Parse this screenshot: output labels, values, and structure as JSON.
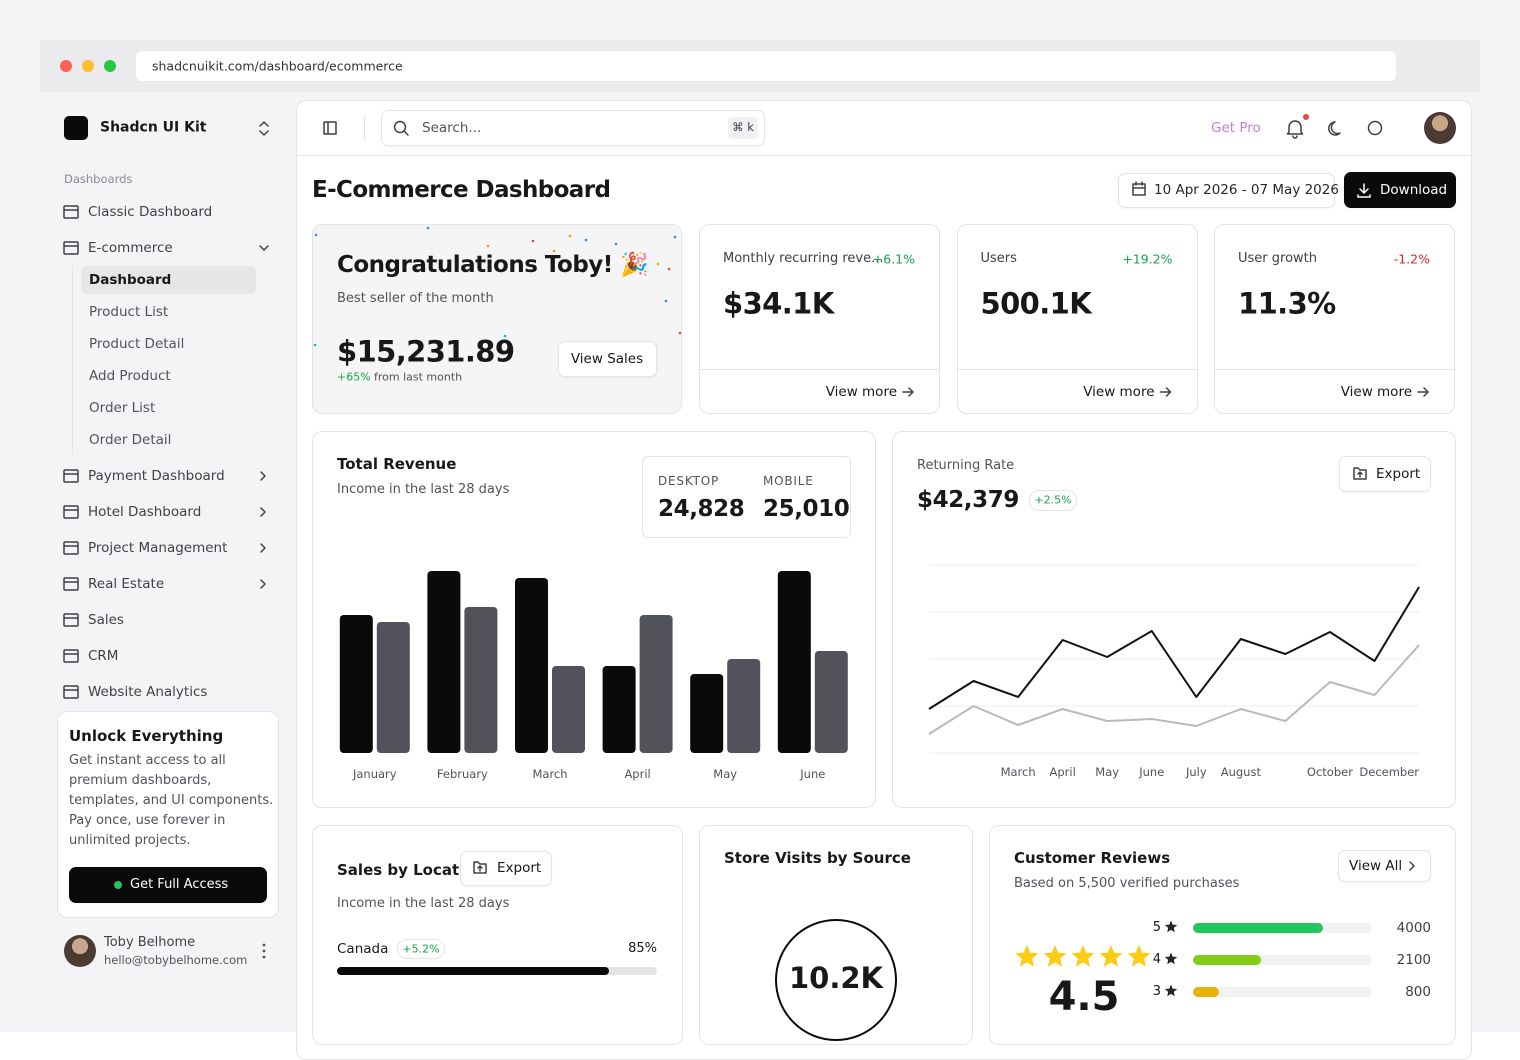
{
  "browser": {
    "url": "shadcnuikit.com/dashboard/ecommerce"
  },
  "sidebar": {
    "brand": "Shadcn UI Kit",
    "section": "Dashboards",
    "items": [
      {
        "label": "Classic Dashboard"
      },
      {
        "label": "E-commerce",
        "children": [
          "Dashboard",
          "Product List",
          "Product Detail",
          "Add Product",
          "Order List",
          "Order Detail"
        ],
        "active_child": 0
      },
      {
        "label": "Payment Dashboard",
        "submenu": true
      },
      {
        "label": "Hotel Dashboard",
        "submenu": true
      },
      {
        "label": "Project Management",
        "submenu": true
      },
      {
        "label": "Real Estate",
        "submenu": true
      },
      {
        "label": "Sales"
      },
      {
        "label": "CRM"
      },
      {
        "label": "Website Analytics"
      }
    ],
    "promo": {
      "title": "Unlock Everything",
      "text": "Get instant access to all premium dashboards, templates, and UI components. Pay once, use forever in unlimited projects.",
      "button": "Get Full Access"
    },
    "user": {
      "name": "Toby Belhome",
      "email": "hello@tobybelhome.com"
    }
  },
  "topbar": {
    "search": "Search...",
    "shortcut": "⌘ k",
    "get_pro": "Get Pro"
  },
  "header": {
    "title": "E-Commerce Dashboard",
    "date_range": "10 Apr 2026 - 07 May 2026",
    "download": "Download"
  },
  "congrats": {
    "title": "Congratulations Toby! 🎉",
    "subtitle": "Best seller of the month",
    "amount": "$15,231.89",
    "change": "+65%",
    "change_text": "from last month",
    "button": "View Sales"
  },
  "stats": [
    {
      "label": "Monthly recurring reve...",
      "change": "+6.1%",
      "color": "#16a34a",
      "value": "$34.1K",
      "link": "View more"
    },
    {
      "label": "Users",
      "change": "+19.2%",
      "color": "#16a34a",
      "value": "500.1K",
      "link": "View more"
    },
    {
      "label": "User growth",
      "change": "-1.2%",
      "color": "#dc2626",
      "value": "11.3%",
      "link": "View more"
    }
  ],
  "revenue": {
    "title": "Total Revenue",
    "subtitle": "Income in the last 28 days",
    "totals": [
      {
        "label": "DESKTOP",
        "value": "24,828"
      },
      {
        "label": "MOBILE",
        "value": "25,010"
      }
    ]
  },
  "returning": {
    "title": "Returning Rate",
    "value": "$42,379",
    "change": "+2.5%",
    "button": "Export"
  },
  "chart_data": [
    {
      "type": "bar",
      "categories": [
        "January",
        "February",
        "March",
        "April",
        "May",
        "June"
      ],
      "ylim": [
        0,
        190
      ],
      "series": [
        {
          "color": "#0a0a0b",
          "values": [
            138,
            182,
            175,
            87,
            79,
            182
          ]
        },
        {
          "color": "#52525b",
          "values": [
            131,
            146,
            87,
            138,
            94,
            102
          ]
        }
      ]
    },
    {
      "type": "line",
      "categories": [
        null,
        null,
        "March",
        "April",
        "May",
        "June",
        "July",
        "August",
        null,
        "October",
        null,
        "December"
      ],
      "ylim": [
        0,
        188
      ],
      "yticks": [
        0,
        47,
        94,
        141,
        188
      ],
      "grid": true,
      "series": [
        {
          "color": "#111113",
          "values": [
            44,
            72,
            56,
            113,
            96,
            122,
            56,
            114,
            99,
            121,
            92,
            166
          ]
        },
        {
          "color": "#b9b9be",
          "values": [
            19,
            47,
            28,
            44,
            32,
            34,
            27,
            44,
            32,
            71,
            58,
            108
          ]
        }
      ]
    }
  ],
  "location": {
    "title": "Sales by Location",
    "button": "Export",
    "subtitle": "Income in the last 28 days",
    "rows": [
      {
        "name": "Canada",
        "change": "+5.2%",
        "value": 85,
        "value_label": "85%"
      }
    ]
  },
  "visits": {
    "title": "Store Visits by Source",
    "total": "10.2K"
  },
  "reviews": {
    "title": "Customer Reviews",
    "subtitle": "Based on 5,500 verified purchases",
    "button": "View All",
    "rating": "4.5",
    "xlim": [
      0,
      5500
    ],
    "rows": [
      {
        "stars": "5",
        "value": 4000,
        "color": "#22c55e"
      },
      {
        "stars": "4",
        "value": 2100,
        "color": "#84cc16"
      },
      {
        "stars": "3",
        "value": 800,
        "color": "#eab308"
      }
    ]
  }
}
